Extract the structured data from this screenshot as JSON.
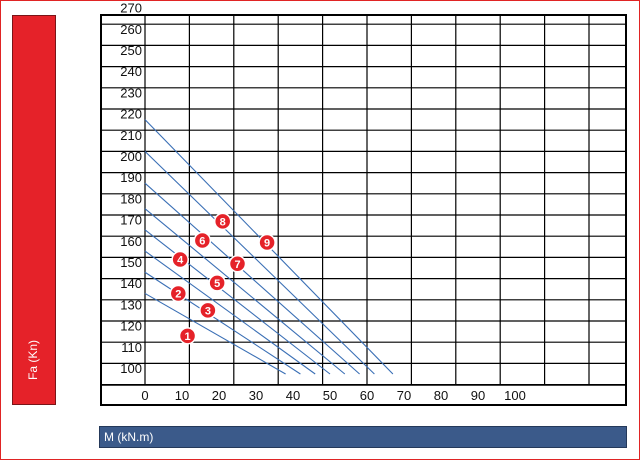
{
  "chart_data": {
    "type": "scatter",
    "xlabel": "M (kN.m)",
    "ylabel": "Fa (Kn)",
    "x_ticks": [
      0,
      10,
      20,
      30,
      40,
      50,
      60,
      70,
      80,
      90,
      100
    ],
    "y_ticks": [
      100,
      110,
      120,
      130,
      140,
      150,
      160,
      170,
      180,
      190,
      200,
      210,
      220,
      230,
      240,
      250,
      260,
      270
    ],
    "xlim": [
      0,
      120
    ],
    "ylim": [
      95,
      275
    ],
    "grid": true,
    "grid_style": "rectangular columns of 12 units, rows of 10 units",
    "points": [
      {
        "label": "1",
        "x": 11.5,
        "y": 118
      },
      {
        "label": "2",
        "x": 9,
        "y": 138
      },
      {
        "label": "3",
        "x": 17,
        "y": 130
      },
      {
        "label": "4",
        "x": 9.5,
        "y": 154
      },
      {
        "label": "5",
        "x": 19.5,
        "y": 143
      },
      {
        "label": "6",
        "x": 15.5,
        "y": 163
      },
      {
        "label": "7",
        "x": 25,
        "y": 152
      },
      {
        "label": "8",
        "x": 21,
        "y": 172
      },
      {
        "label": "9",
        "x": 33,
        "y": 162
      }
    ],
    "diagonal_lines": [
      {
        "x0": 0,
        "y0": 220,
        "x1": 67,
        "y1": 100
      },
      {
        "x0": 0,
        "y0": 205,
        "x1": 62,
        "y1": 100
      },
      {
        "x0": 0,
        "y0": 190,
        "x1": 58,
        "y1": 100
      },
      {
        "x0": 0,
        "y0": 178,
        "x1": 54,
        "y1": 100
      },
      {
        "x0": 0,
        "y0": 168,
        "x1": 50,
        "y1": 100
      },
      {
        "x0": 0,
        "y0": 158,
        "x1": 46,
        "y1": 100
      },
      {
        "x0": 0,
        "y0": 148,
        "x1": 42,
        "y1": 100
      },
      {
        "x0": 0,
        "y0": 138,
        "x1": 38,
        "y1": 100
      }
    ],
    "colors": {
      "grid": "#000000",
      "diagonal": "#3a6fb5",
      "marker": "#e52229",
      "ylabel_bar": "#e52229",
      "xlabel_bar": "#3b5a8a"
    }
  }
}
